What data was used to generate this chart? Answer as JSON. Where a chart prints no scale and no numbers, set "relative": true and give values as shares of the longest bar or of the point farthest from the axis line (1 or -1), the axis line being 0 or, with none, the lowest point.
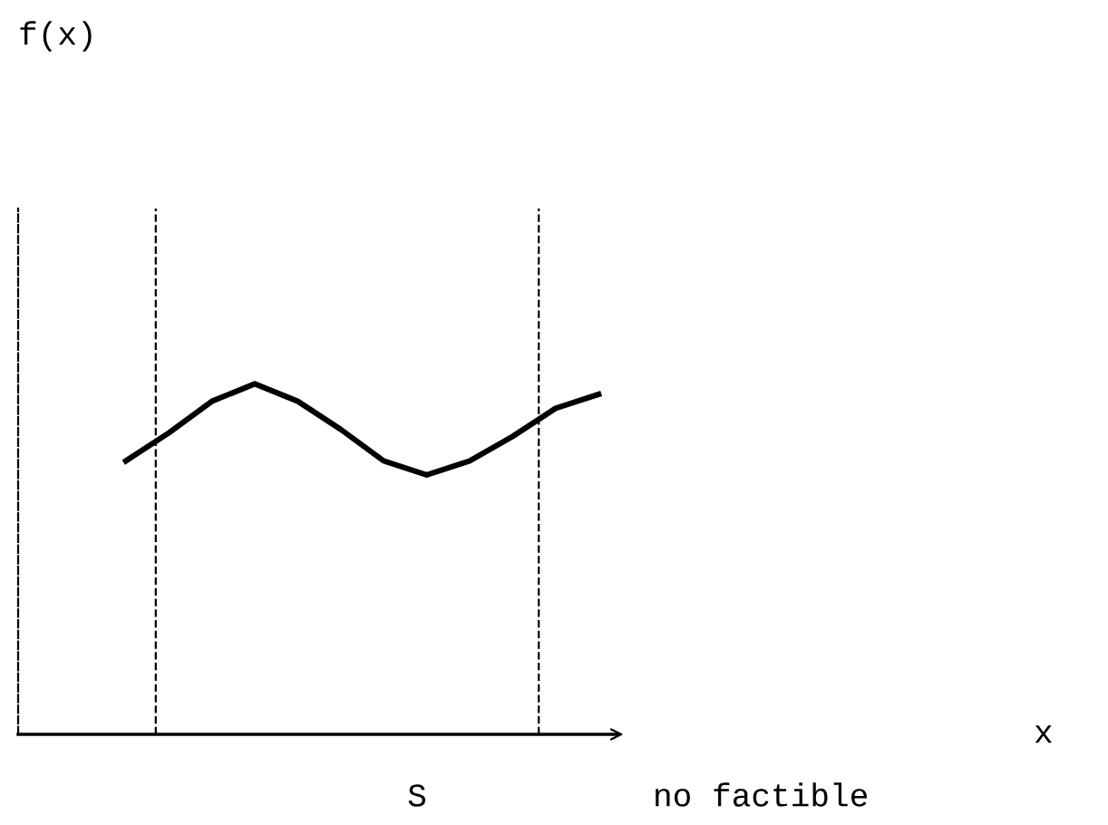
{
  "chart_data": {
    "type": "line",
    "relative": true,
    "categories": [
      null,
      null,
      null,
      null,
      null,
      null,
      null,
      null,
      null,
      null,
      null,
      null
    ],
    "series": [
      {
        "color": "#000000",
        "values": [
          0.78,
          0.86,
          0.95,
          1,
          0.95,
          0.87,
          0.78,
          0.74,
          0.78,
          0.85,
          0.93,
          0.97
        ]
      }
    ],
    "annotations": [
      "f(x)",
      "x",
      "S",
      "no factible"
    ],
    "marker": "none",
    "line_style": "solid"
  }
}
